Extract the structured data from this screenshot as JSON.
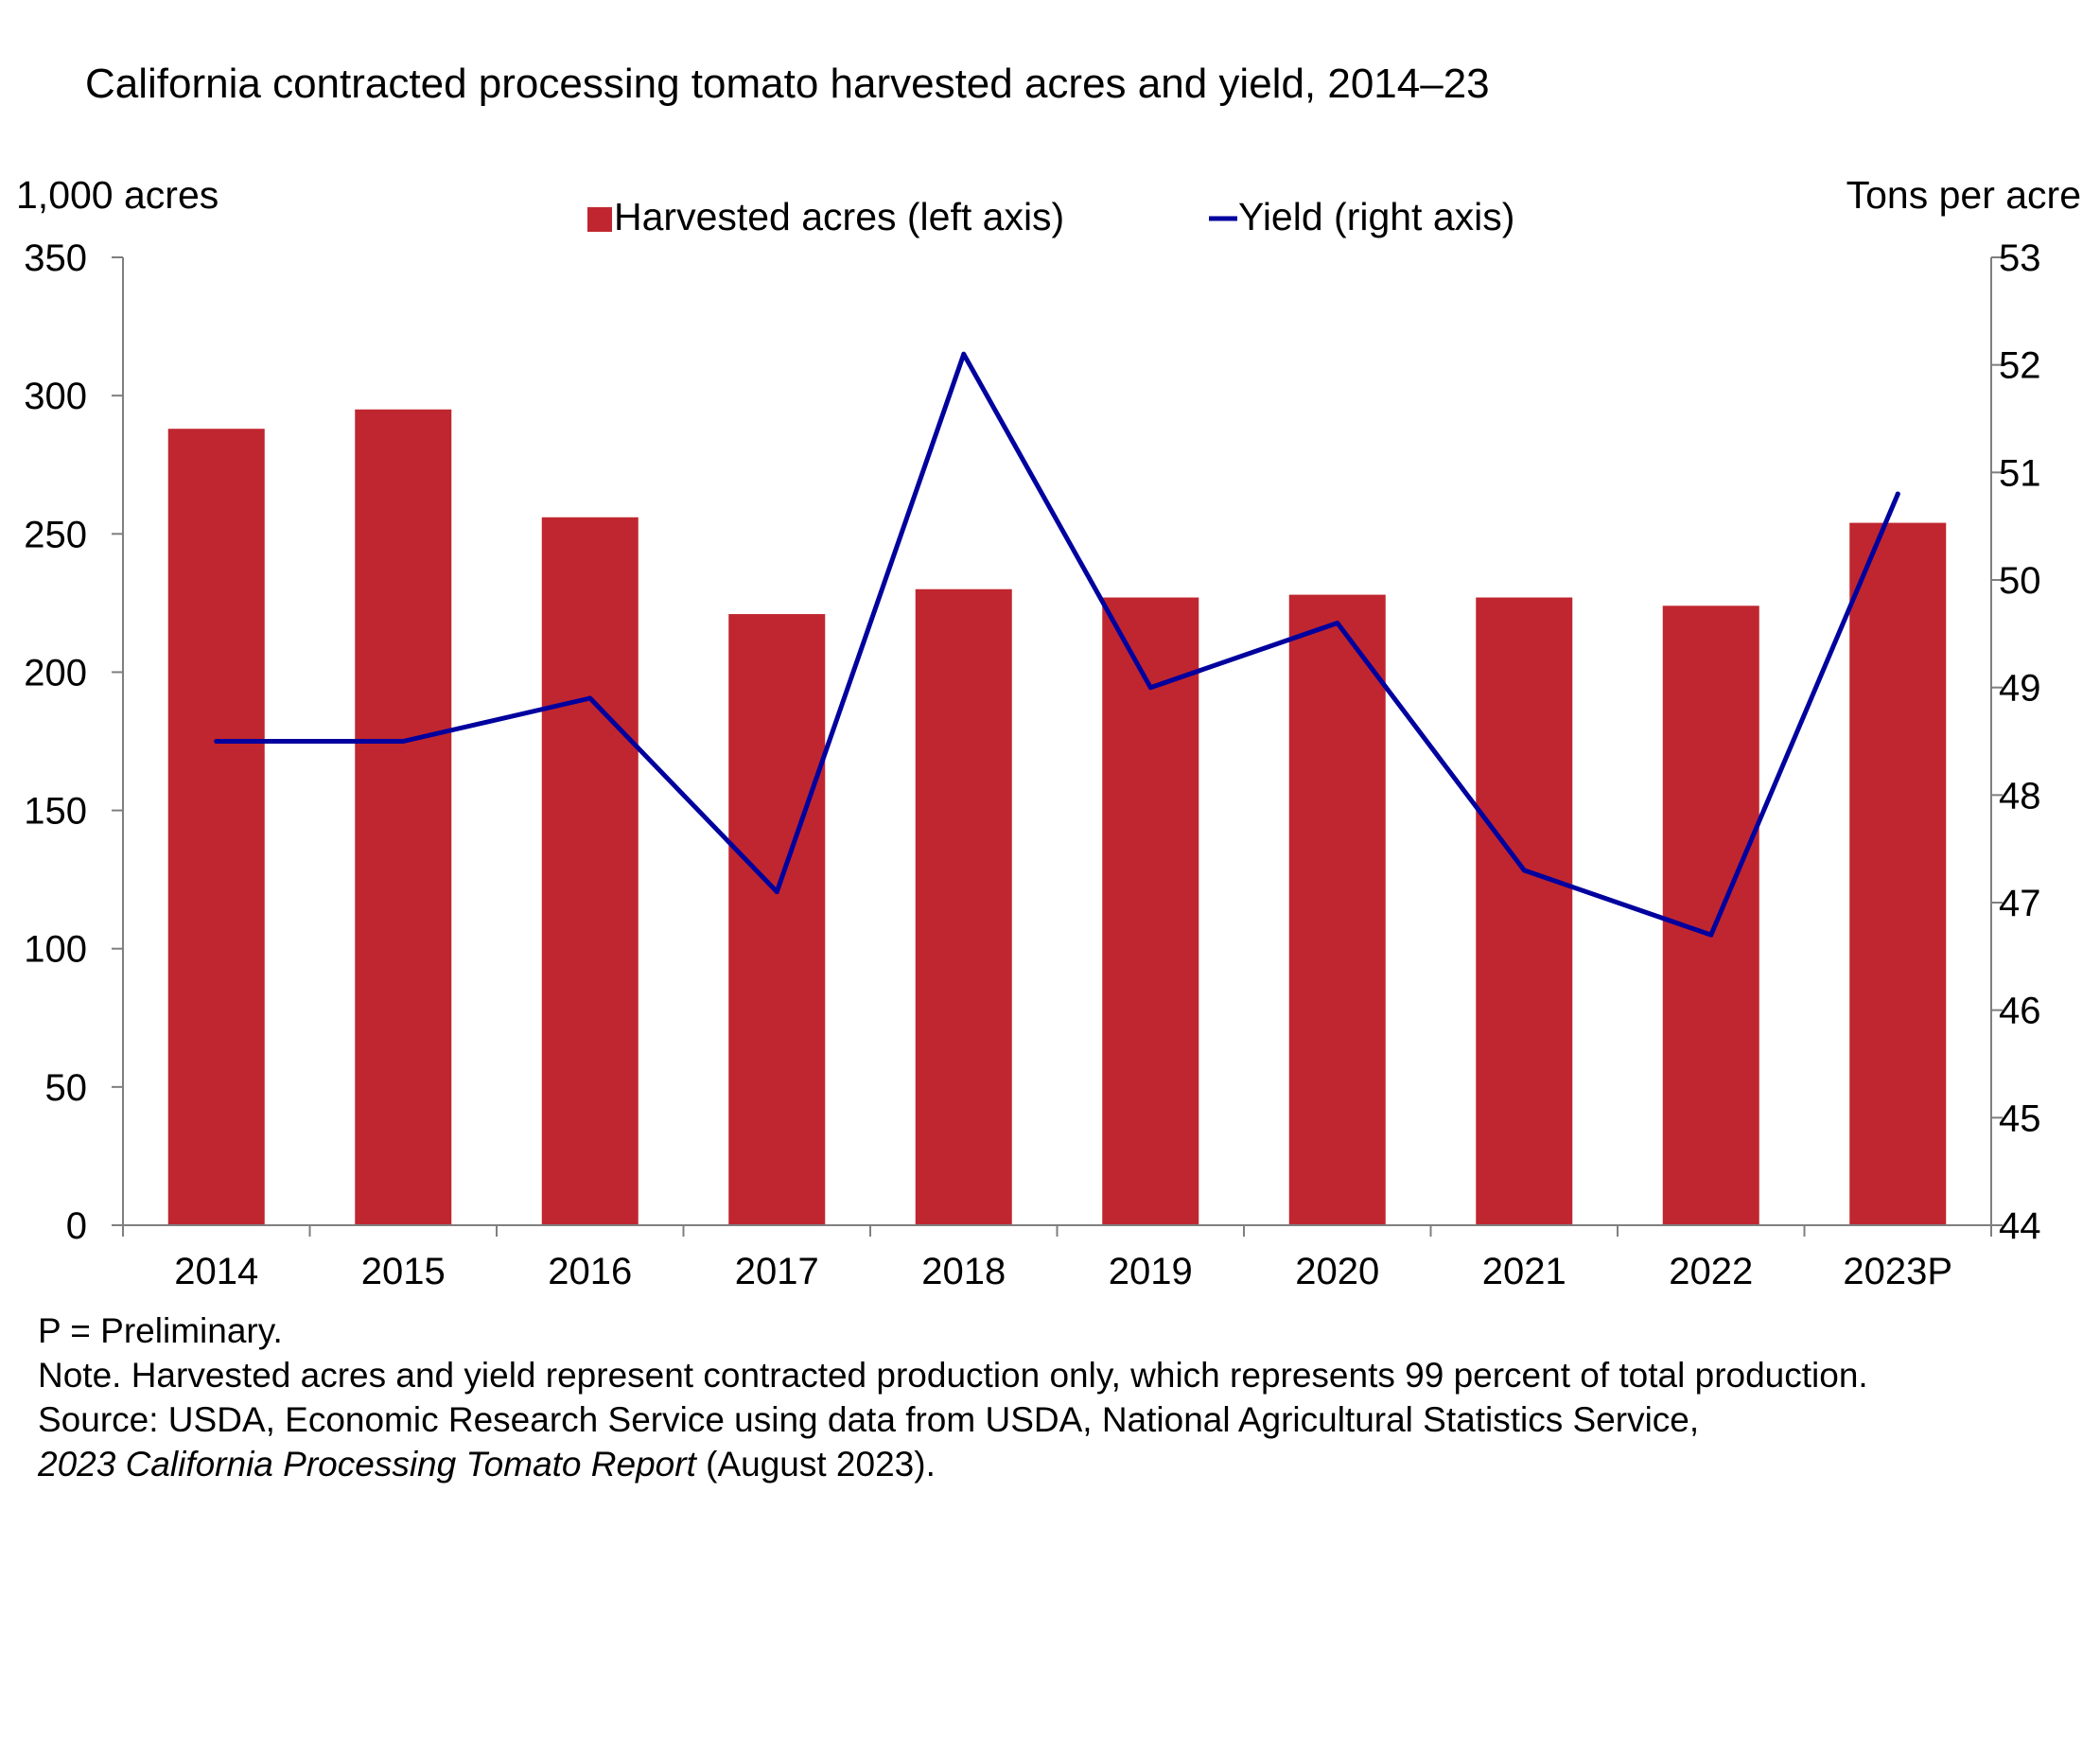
{
  "chart_data": {
    "type": "bar",
    "title": "California contracted processing tomato harvested acres and yield, 2014–23",
    "categories": [
      "2014",
      "2015",
      "2016",
      "2017",
      "2018",
      "2019",
      "2020",
      "2021",
      "2022",
      "2023P"
    ],
    "series": [
      {
        "name": "Harvested acres (left axis)",
        "kind": "bar",
        "axis": "left",
        "color": "#c0262f",
        "values": [
          288,
          295,
          256,
          221,
          230,
          227,
          228,
          227,
          224,
          254
        ]
      },
      {
        "name": "Yield (right axis)",
        "kind": "line",
        "axis": "right",
        "color": "#00009e",
        "values": [
          48.5,
          48.5,
          48.9,
          47.1,
          52.1,
          49.0,
          49.6,
          47.3,
          46.7,
          50.8
        ]
      }
    ],
    "ylabel_left": "1,000 acres",
    "ylabel_right": "Tons per acre",
    "ylim_left": [
      0,
      350
    ],
    "yticks_left": [
      "0",
      "50",
      "100",
      "150",
      "200",
      "250",
      "300",
      "350"
    ],
    "ylim_right": [
      44,
      53
    ],
    "yticks_right": [
      "44",
      "45",
      "46",
      "47",
      "48",
      "49",
      "50",
      "51",
      "52",
      "53"
    ],
    "legend": "top-center",
    "grid": false
  },
  "notes": {
    "preliminary": "P = Preliminary.",
    "note": "Note. Harvested acres and yield represent contracted production only, which represents 99 percent of total production.",
    "source": "Source: USDA, Economic Research Service using data from USDA, National Agricultural Statistics Service,",
    "report_title": "2023 California Processing Tomato Report",
    "report_date": " (August 2023)."
  }
}
